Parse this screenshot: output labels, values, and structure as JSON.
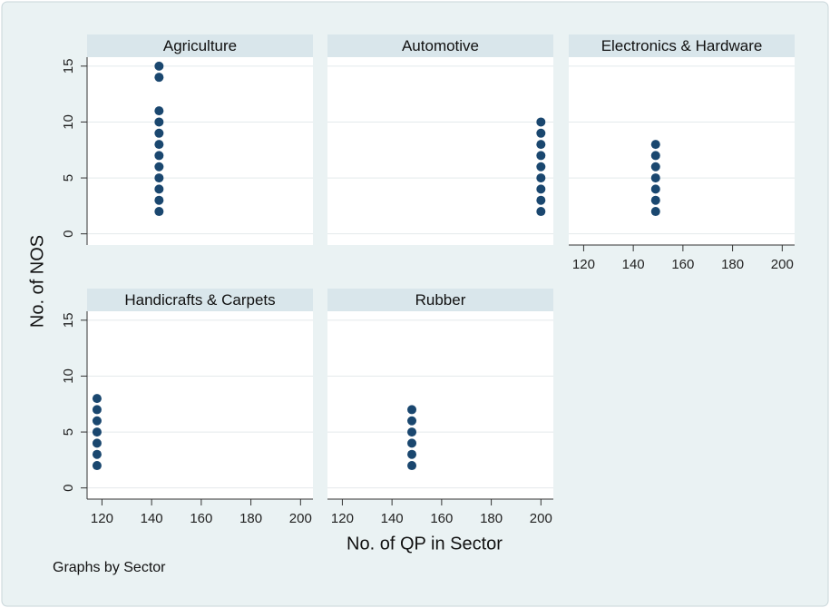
{
  "ylabel": "No. of NOS",
  "xlabel": "No. of QP in Sector",
  "note": "Graphs by Sector",
  "chart_data": [
    {
      "type": "scatter",
      "title": "Agriculture",
      "color": "#1a476f",
      "grid": true,
      "x": [
        143,
        143,
        143,
        143,
        143,
        143,
        143,
        143,
        143,
        143,
        143,
        143
      ],
      "y": [
        2,
        3,
        4,
        5,
        6,
        7,
        8,
        9,
        10,
        11,
        14,
        15
      ],
      "xlim": [
        114,
        205
      ],
      "ylim": [
        -1,
        15.8
      ],
      "xticks": [
        120,
        140,
        160,
        180,
        200
      ],
      "yticks": [
        0,
        5,
        10,
        15
      ]
    },
    {
      "type": "scatter",
      "title": "Automotive",
      "color": "#1a476f",
      "grid": true,
      "x": [
        200,
        200,
        200,
        200,
        200,
        200,
        200,
        200,
        200
      ],
      "y": [
        2,
        3,
        4,
        5,
        6,
        7,
        8,
        9,
        10
      ],
      "xlim": [
        114,
        205
      ],
      "ylim": [
        -1,
        15.8
      ],
      "xticks": [
        120,
        140,
        160,
        180,
        200
      ],
      "yticks": [
        0,
        5,
        10,
        15
      ]
    },
    {
      "type": "scatter",
      "title": "Electronics & Hardware",
      "color": "#1a476f",
      "grid": true,
      "x": [
        149,
        149,
        149,
        149,
        149,
        149,
        149
      ],
      "y": [
        2,
        3,
        4,
        5,
        6,
        7,
        8
      ],
      "xlim": [
        114,
        205
      ],
      "ylim": [
        -1,
        15.8
      ],
      "xticks": [
        120,
        140,
        160,
        180,
        200
      ],
      "yticks": [
        0,
        5,
        10,
        15
      ]
    },
    {
      "type": "scatter",
      "title": "Handicrafts & Carpets",
      "color": "#1a476f",
      "grid": true,
      "x": [
        118,
        118,
        118,
        118,
        118,
        118,
        118
      ],
      "y": [
        2,
        3,
        4,
        5,
        6,
        7,
        8
      ],
      "xlim": [
        114,
        205
      ],
      "ylim": [
        -1,
        15.8
      ],
      "xticks": [
        120,
        140,
        160,
        180,
        200
      ],
      "yticks": [
        0,
        5,
        10,
        15
      ]
    },
    {
      "type": "scatter",
      "title": "Rubber",
      "color": "#1a476f",
      "grid": true,
      "x": [
        148,
        148,
        148,
        148,
        148,
        148
      ],
      "y": [
        2,
        3,
        4,
        5,
        6,
        7
      ],
      "xlim": [
        114,
        205
      ],
      "ylim": [
        -1,
        15.8
      ],
      "xticks": [
        120,
        140,
        160,
        180,
        200
      ],
      "yticks": [
        0,
        5,
        10,
        15
      ]
    }
  ]
}
